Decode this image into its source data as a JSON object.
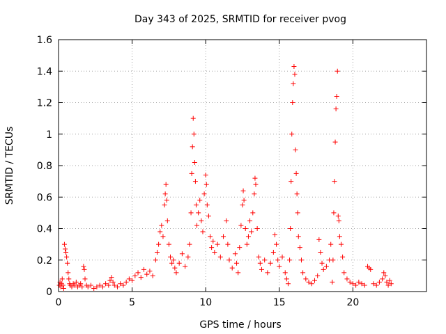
{
  "chart_data": {
    "type": "scatter",
    "title": "Day 343 of 2025, SRMTID for receiver pvog",
    "xlabel": "GPS time / hours",
    "ylabel": "SRMTID / TECUs",
    "xlim": [
      0,
      25
    ],
    "ylim": [
      0,
      1.6
    ],
    "grid": true,
    "marker": "+",
    "color": "#ff0000",
    "x_ticks": [
      0,
      5,
      10,
      15,
      20
    ],
    "x_tick_labels": [
      "0",
      "5",
      "10",
      "15",
      "20"
    ],
    "y_ticks": [
      0,
      0.2,
      0.4,
      0.6,
      0.8,
      1,
      1.2,
      1.4,
      1.6
    ],
    "y_tick_labels": [
      "0",
      "0.2",
      "0.4",
      "0.6",
      "0.8",
      "1",
      "1.2",
      "1.4",
      "1.6"
    ],
    "series": [
      {
        "name": "SRMTID",
        "points": [
          [
            0.05,
            0.04
          ],
          [
            0.1,
            0.06
          ],
          [
            0.15,
            0.03
          ],
          [
            0.2,
            0.05
          ],
          [
            0.25,
            0.08
          ],
          [
            0.3,
            0.04
          ],
          [
            0.35,
            0.02
          ],
          [
            0.4,
            0.3
          ],
          [
            0.45,
            0.27
          ],
          [
            0.5,
            0.25
          ],
          [
            0.55,
            0.22
          ],
          [
            0.6,
            0.18
          ],
          [
            0.65,
            0.12
          ],
          [
            0.7,
            0.08
          ],
          [
            0.75,
            0.05
          ],
          [
            0.8,
            0.04
          ],
          [
            0.9,
            0.03
          ],
          [
            1.0,
            0.05
          ],
          [
            1.1,
            0.04
          ],
          [
            1.2,
            0.06
          ],
          [
            1.3,
            0.03
          ],
          [
            1.4,
            0.04
          ],
          [
            1.5,
            0.05
          ],
          [
            1.6,
            0.03
          ],
          [
            1.7,
            0.16
          ],
          [
            1.75,
            0.14
          ],
          [
            1.8,
            0.08
          ],
          [
            1.9,
            0.04
          ],
          [
            2.0,
            0.03
          ],
          [
            2.2,
            0.04
          ],
          [
            2.4,
            0.02
          ],
          [
            2.6,
            0.03
          ],
          [
            2.8,
            0.04
          ],
          [
            3.0,
            0.03
          ],
          [
            3.2,
            0.05
          ],
          [
            3.4,
            0.04
          ],
          [
            3.5,
            0.07
          ],
          [
            3.6,
            0.09
          ],
          [
            3.7,
            0.06
          ],
          [
            3.8,
            0.04
          ],
          [
            4.0,
            0.03
          ],
          [
            4.2,
            0.05
          ],
          [
            4.4,
            0.04
          ],
          [
            4.6,
            0.06
          ],
          [
            4.8,
            0.08
          ],
          [
            5.0,
            0.07
          ],
          [
            5.2,
            0.1
          ],
          [
            5.4,
            0.12
          ],
          [
            5.6,
            0.09
          ],
          [
            5.8,
            0.14
          ],
          [
            6.0,
            0.11
          ],
          [
            6.2,
            0.13
          ],
          [
            6.4,
            0.1
          ],
          [
            6.6,
            0.2
          ],
          [
            6.7,
            0.25
          ],
          [
            6.8,
            0.3
          ],
          [
            6.9,
            0.38
          ],
          [
            7.0,
            0.42
          ],
          [
            7.1,
            0.35
          ],
          [
            7.2,
            0.55
          ],
          [
            7.25,
            0.62
          ],
          [
            7.3,
            0.68
          ],
          [
            7.35,
            0.58
          ],
          [
            7.4,
            0.45
          ],
          [
            7.5,
            0.3
          ],
          [
            7.6,
            0.22
          ],
          [
            7.7,
            0.18
          ],
          [
            7.8,
            0.2
          ],
          [
            7.9,
            0.15
          ],
          [
            8.0,
            0.12
          ],
          [
            8.2,
            0.18
          ],
          [
            8.4,
            0.24
          ],
          [
            8.6,
            0.16
          ],
          [
            8.8,
            0.22
          ],
          [
            8.9,
            0.3
          ],
          [
            9.0,
            0.5
          ],
          [
            9.05,
            0.75
          ],
          [
            9.1,
            0.92
          ],
          [
            9.15,
            1.1
          ],
          [
            9.2,
            1.0
          ],
          [
            9.25,
            0.82
          ],
          [
            9.3,
            0.7
          ],
          [
            9.35,
            0.55
          ],
          [
            9.4,
            0.42
          ],
          [
            9.5,
            0.5
          ],
          [
            9.6,
            0.58
          ],
          [
            9.7,
            0.45
          ],
          [
            9.8,
            0.38
          ],
          [
            9.9,
            0.62
          ],
          [
            10.0,
            0.74
          ],
          [
            10.05,
            0.68
          ],
          [
            10.1,
            0.55
          ],
          [
            10.2,
            0.48
          ],
          [
            10.3,
            0.35
          ],
          [
            10.4,
            0.28
          ],
          [
            10.5,
            0.32
          ],
          [
            10.6,
            0.25
          ],
          [
            10.8,
            0.3
          ],
          [
            11.0,
            0.22
          ],
          [
            11.2,
            0.35
          ],
          [
            11.4,
            0.45
          ],
          [
            11.5,
            0.3
          ],
          [
            11.6,
            0.2
          ],
          [
            11.8,
            0.15
          ],
          [
            12.0,
            0.24
          ],
          [
            12.1,
            0.18
          ],
          [
            12.2,
            0.12
          ],
          [
            12.3,
            0.28
          ],
          [
            12.4,
            0.42
          ],
          [
            12.5,
            0.55
          ],
          [
            12.55,
            0.64
          ],
          [
            12.6,
            0.58
          ],
          [
            12.7,
            0.4
          ],
          [
            12.8,
            0.3
          ],
          [
            12.9,
            0.35
          ],
          [
            13.0,
            0.45
          ],
          [
            13.1,
            0.38
          ],
          [
            13.2,
            0.5
          ],
          [
            13.3,
            0.62
          ],
          [
            13.35,
            0.72
          ],
          [
            13.4,
            0.68
          ],
          [
            13.5,
            0.4
          ],
          [
            13.6,
            0.22
          ],
          [
            13.7,
            0.18
          ],
          [
            13.8,
            0.14
          ],
          [
            14.0,
            0.2
          ],
          [
            14.2,
            0.12
          ],
          [
            14.4,
            0.18
          ],
          [
            14.6,
            0.25
          ],
          [
            14.7,
            0.36
          ],
          [
            14.8,
            0.3
          ],
          [
            14.9,
            0.2
          ],
          [
            15.0,
            0.16
          ],
          [
            15.2,
            0.22
          ],
          [
            15.4,
            0.12
          ],
          [
            15.5,
            0.08
          ],
          [
            15.6,
            0.05
          ],
          [
            15.7,
            0.2
          ],
          [
            15.75,
            0.4
          ],
          [
            15.8,
            0.7
          ],
          [
            15.85,
            1.0
          ],
          [
            15.9,
            1.2
          ],
          [
            15.95,
            1.32
          ],
          [
            16.0,
            1.43
          ],
          [
            16.05,
            1.38
          ],
          [
            16.1,
            0.9
          ],
          [
            16.15,
            0.75
          ],
          [
            16.2,
            0.62
          ],
          [
            16.25,
            0.5
          ],
          [
            16.3,
            0.35
          ],
          [
            16.4,
            0.28
          ],
          [
            16.5,
            0.2
          ],
          [
            16.6,
            0.12
          ],
          [
            16.8,
            0.08
          ],
          [
            17.0,
            0.06
          ],
          [
            17.2,
            0.05
          ],
          [
            17.4,
            0.07
          ],
          [
            17.6,
            0.1
          ],
          [
            17.7,
            0.33
          ],
          [
            17.8,
            0.25
          ],
          [
            17.9,
            0.18
          ],
          [
            18.0,
            0.14
          ],
          [
            18.2,
            0.16
          ],
          [
            18.4,
            0.2
          ],
          [
            18.5,
            0.3
          ],
          [
            18.6,
            0.06
          ],
          [
            18.65,
            0.2
          ],
          [
            18.7,
            0.5
          ],
          [
            18.75,
            0.7
          ],
          [
            18.8,
            0.95
          ],
          [
            18.85,
            1.16
          ],
          [
            18.9,
            1.24
          ],
          [
            18.95,
            1.4
          ],
          [
            19.0,
            0.48
          ],
          [
            19.05,
            0.45
          ],
          [
            19.1,
            0.35
          ],
          [
            19.2,
            0.3
          ],
          [
            19.3,
            0.22
          ],
          [
            19.4,
            0.12
          ],
          [
            19.6,
            0.08
          ],
          [
            19.8,
            0.06
          ],
          [
            20.0,
            0.05
          ],
          [
            20.2,
            0.04
          ],
          [
            20.4,
            0.06
          ],
          [
            20.6,
            0.05
          ],
          [
            20.8,
            0.04
          ],
          [
            21.0,
            0.16
          ],
          [
            21.1,
            0.15
          ],
          [
            21.2,
            0.14
          ],
          [
            21.4,
            0.05
          ],
          [
            21.6,
            0.04
          ],
          [
            21.8,
            0.06
          ],
          [
            22.0,
            0.08
          ],
          [
            22.1,
            0.12
          ],
          [
            22.2,
            0.1
          ],
          [
            22.3,
            0.06
          ],
          [
            22.4,
            0.04
          ],
          [
            22.5,
            0.07
          ],
          [
            22.6,
            0.05
          ]
        ]
      }
    ]
  }
}
